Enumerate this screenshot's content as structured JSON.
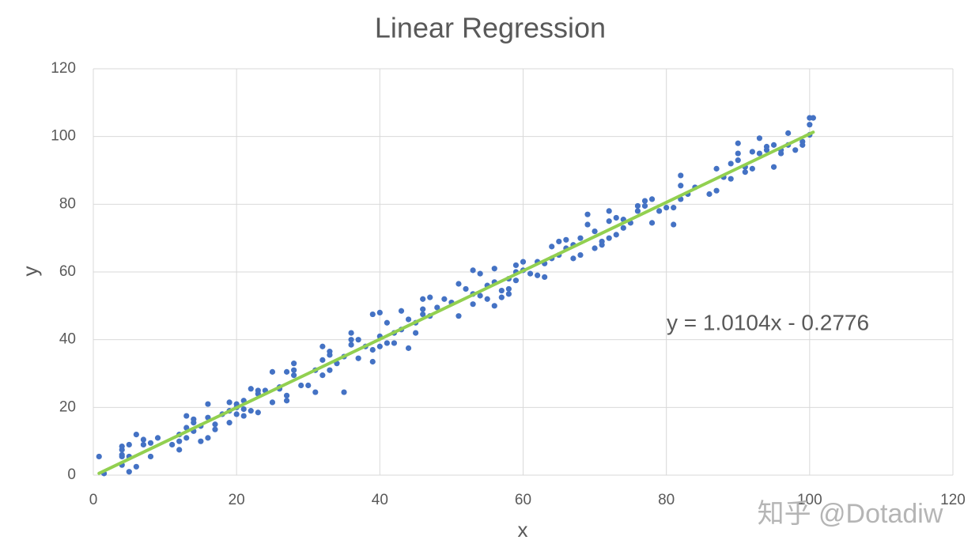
{
  "chart_data": {
    "type": "scatter",
    "title": "Linear Regression",
    "xlabel": "x",
    "ylabel": "y",
    "annotation": "y = 1.0104x - 0.2776",
    "watermark": "知乎 @Dotadiw",
    "xlim": [
      0,
      120
    ],
    "ylim": [
      0,
      120
    ],
    "xticks": [
      0,
      20,
      40,
      60,
      80,
      100,
      120
    ],
    "yticks": [
      0,
      20,
      40,
      60,
      80,
      100,
      120
    ],
    "grid": true,
    "series": [
      {
        "color": "#4472c4",
        "x": [
          0.8,
          1.5,
          4,
          4,
          4,
          4,
          4,
          5,
          5,
          5,
          6,
          6,
          7,
          7,
          8,
          8,
          9,
          11,
          12,
          12,
          12,
          13,
          13,
          13,
          14,
          14,
          14,
          15,
          15,
          16,
          16,
          16,
          17,
          17,
          18,
          19,
          19,
          19,
          20,
          20,
          20,
          21,
          21,
          21,
          22,
          22,
          23,
          23,
          23,
          24,
          25,
          25,
          26,
          26,
          27,
          27,
          27,
          28,
          28,
          28,
          29,
          30,
          31,
          31,
          32,
          32,
          32,
          33,
          33,
          33,
          34,
          35,
          35,
          36,
          36,
          36,
          37,
          37,
          38,
          39,
          39,
          39,
          40,
          40,
          40,
          41,
          41,
          42,
          42,
          43,
          43,
          44,
          44,
          45,
          45,
          46,
          46,
          46,
          47,
          47,
          48,
          49,
          50,
          51,
          51,
          52,
          53,
          53,
          53,
          54,
          54,
          55,
          55,
          56,
          56,
          56,
          57,
          57,
          58,
          58,
          58,
          59,
          59,
          59,
          60,
          60,
          61,
          62,
          62,
          63,
          63,
          64,
          64,
          65,
          65,
          66,
          66,
          67,
          67,
          68,
          68,
          69,
          69,
          70,
          70,
          71,
          71,
          72,
          72,
          72,
          73,
          73,
          74,
          74,
          75,
          76,
          76,
          77,
          77,
          78,
          78,
          79,
          80,
          81,
          81,
          82,
          82,
          82,
          83,
          84,
          86,
          87,
          87,
          88,
          89,
          89,
          90,
          90,
          90,
          91,
          91,
          92,
          92,
          93,
          93,
          94,
          94,
          95,
          95,
          96,
          96,
          97,
          97,
          98,
          99,
          99,
          100,
          100,
          100,
          100.5
        ],
        "values": [
          5.5,
          0.5,
          8.5,
          7.5,
          6,
          5.5,
          3,
          9,
          5.5,
          1,
          12,
          2.5,
          10.5,
          9,
          9.5,
          5.5,
          11,
          9,
          12,
          7.5,
          10,
          17.5,
          14,
          11,
          16.5,
          13,
          15.5,
          10,
          14.5,
          21,
          17,
          11,
          15,
          13.5,
          18,
          21.5,
          15.5,
          19,
          18,
          21,
          20,
          17.5,
          22,
          19.5,
          25.5,
          19,
          25,
          18.5,
          24,
          25,
          30.5,
          21.5,
          26,
          25.5,
          30.5,
          23.5,
          22,
          33,
          29.5,
          31,
          26.5,
          26.5,
          24.5,
          31,
          38,
          34,
          29.5,
          36.5,
          35.5,
          31,
          33,
          24.5,
          35,
          42,
          40,
          38.5,
          40,
          34.5,
          38,
          47.5,
          37,
          33.5,
          48,
          41,
          38,
          45,
          39,
          42,
          39,
          48.5,
          43,
          37.5,
          46,
          45,
          42,
          52,
          49,
          47.5,
          52.5,
          47,
          49.5,
          52,
          51,
          56.5,
          47,
          55,
          60.5,
          53.5,
          50.5,
          59.5,
          53,
          56,
          52,
          61,
          57,
          50,
          54.5,
          52.5,
          58,
          55,
          53.5,
          62,
          60,
          57.5,
          63,
          60.5,
          59.5,
          63,
          59,
          62.5,
          58.5,
          67.5,
          64,
          69,
          65,
          69.5,
          67,
          64,
          68,
          70,
          65,
          77,
          74,
          67,
          72,
          69,
          68,
          78,
          75,
          70,
          76,
          71,
          73,
          75.5,
          74.5,
          79.5,
          78,
          81,
          79.5,
          81.5,
          74.5,
          78,
          79,
          79,
          74,
          88.5,
          85.5,
          81.5,
          83,
          85,
          83,
          90.5,
          84,
          88,
          92,
          87.5,
          98,
          95,
          93,
          91,
          89.5,
          95.5,
          90.5,
          99.5,
          95,
          97,
          96,
          91,
          97.5,
          96,
          95,
          101,
          97.5,
          96,
          98.5,
          97.5,
          103.5,
          105.5,
          100.5,
          105.5
        ]
      }
    ],
    "trendline": {
      "color": "#92d050",
      "x": [
        0.8,
        100.5
      ],
      "values": [
        0.53,
        101.27
      ]
    }
  }
}
